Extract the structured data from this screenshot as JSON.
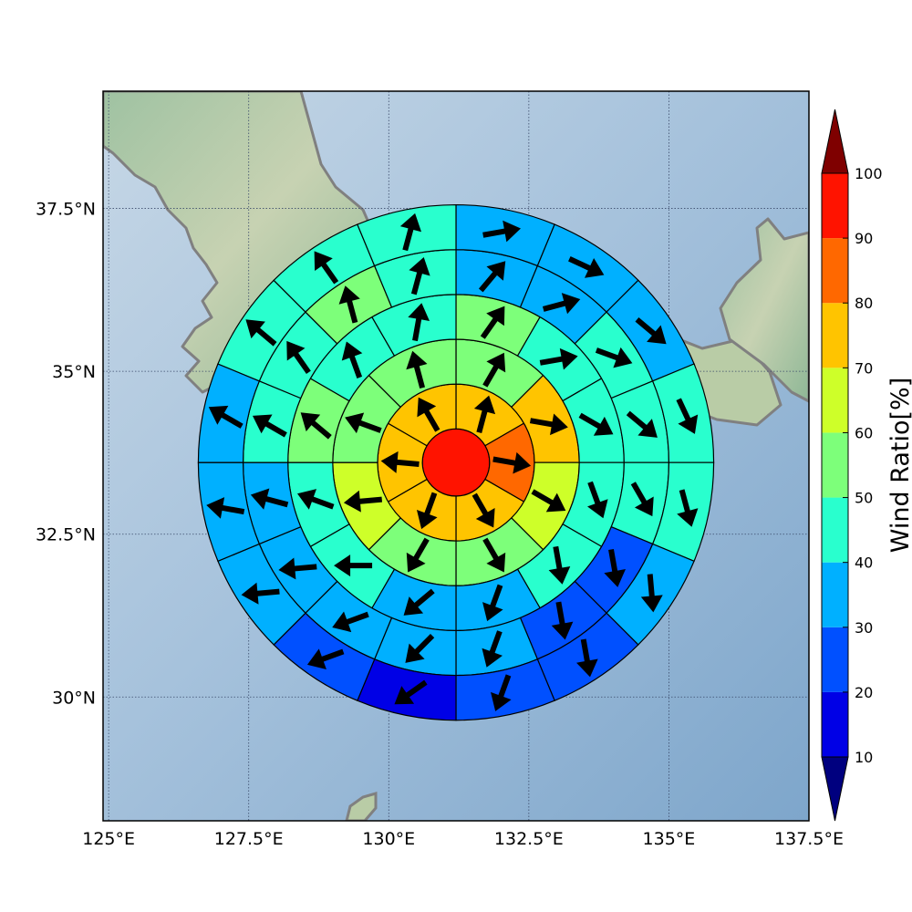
{
  "chart_data": {
    "type": "heatmap",
    "title": "",
    "xlabel": "",
    "ylabel": "",
    "map": {
      "lon_range": [
        124.9,
        137.5
      ],
      "lat_range": [
        28.1,
        39.3
      ],
      "lon_ticks": [
        {
          "value": 125.0,
          "label": "125°E"
        },
        {
          "value": 127.5,
          "label": "127.5°E"
        },
        {
          "value": 130.0,
          "label": "130°E"
        },
        {
          "value": 132.5,
          "label": "132.5°E"
        },
        {
          "value": 135.0,
          "label": "135°E"
        },
        {
          "value": 137.5,
          "label": "137.5°E"
        }
      ],
      "lat_ticks": [
        {
          "value": 30.0,
          "label": "30°N"
        },
        {
          "value": 32.5,
          "label": "32.5°N"
        },
        {
          "value": 35.0,
          "label": "35°N"
        },
        {
          "value": 37.5,
          "label": "37.5°N"
        }
      ],
      "grid": true,
      "background": "shaded relief with coastlines (Korean peninsula, Kyushu, western Honshu, Tsushima)",
      "ocean_color": "#a9c4dc",
      "land_color": "#a8c4a0",
      "coastline_color": "#808080"
    },
    "polar_grid": {
      "center": {
        "lon": 131.2,
        "lat": 33.6
      },
      "ring_radii_deg_lon": [
        0.6,
        1.4,
        2.2,
        3.0,
        3.8,
        4.6
      ],
      "sectors_per_ring": [
        1,
        6,
        8,
        12,
        16,
        16
      ],
      "direction_convention": "sector 0 starts at north, clockwise",
      "rings": [
        {
          "ring": 0,
          "values": [
            98
          ],
          "arrow_dirs_deg": [
            null
          ]
        },
        {
          "ring": 1,
          "values": [
            75,
            85,
            75,
            75,
            75,
            75
          ],
          "arrow_dirs_deg": [
            15,
            100,
            150,
            200,
            275,
            330
          ]
        },
        {
          "ring": 2,
          "values": [
            55,
            75,
            65,
            55,
            55,
            65,
            55,
            55
          ],
          "arrow_dirs_deg": [
            30,
            100,
            120,
            150,
            210,
            265,
            290,
            345
          ]
        },
        {
          "ring": 3,
          "values": [
            55,
            45,
            45,
            45,
            45,
            35,
            35,
            45,
            45,
            55,
            45,
            45
          ],
          "arrow_dirs_deg": [
            35,
            80,
            120,
            160,
            170,
            200,
            230,
            270,
            290,
            310,
            340,
            10
          ]
        },
        {
          "ring": 4,
          "values": [
            35,
            35,
            45,
            45,
            45,
            25,
            25,
            35,
            35,
            35,
            35,
            35,
            45,
            45,
            55,
            45
          ],
          "arrow_dirs_deg": [
            40,
            75,
            110,
            130,
            150,
            170,
            170,
            200,
            225,
            250,
            265,
            285,
            300,
            325,
            345,
            15
          ]
        },
        {
          "ring": 5,
          "values": [
            35,
            35,
            35,
            45,
            45,
            35,
            25,
            25,
            15,
            25,
            35,
            35,
            35,
            45,
            45,
            45
          ],
          "arrow_dirs_deg": [
            80,
            115,
            130,
            155,
            165,
            175,
            170,
            200,
            235,
            250,
            265,
            280,
            300,
            310,
            325,
            15
          ]
        }
      ]
    },
    "colorbar": {
      "label": "Wind Ratio[%]",
      "min": 10,
      "max": 100,
      "ticks": [
        10,
        20,
        30,
        40,
        50,
        60,
        70,
        80,
        90,
        100
      ],
      "tick_labels": [
        "10",
        "20",
        "30",
        "40",
        "50",
        "60",
        "70",
        "80",
        "90",
        "100"
      ],
      "extend": "both",
      "bins": [
        {
          "range": [
            10,
            20
          ],
          "color": "#0000e6"
        },
        {
          "range": [
            20,
            30
          ],
          "color": "#0050ff"
        },
        {
          "range": [
            30,
            40
          ],
          "color": "#00b0ff"
        },
        {
          "range": [
            40,
            50
          ],
          "color": "#29ffce"
        },
        {
          "range": [
            50,
            60
          ],
          "color": "#7dff7a"
        },
        {
          "range": [
            60,
            70
          ],
          "color": "#ceff29"
        },
        {
          "range": [
            70,
            80
          ],
          "color": "#ffc400"
        },
        {
          "range": [
            80,
            90
          ],
          "color": "#ff6800"
        },
        {
          "range": [
            90,
            100
          ],
          "color": "#ff1300"
        }
      ],
      "under_color": "#00007f",
      "over_color": "#7f0000"
    }
  }
}
